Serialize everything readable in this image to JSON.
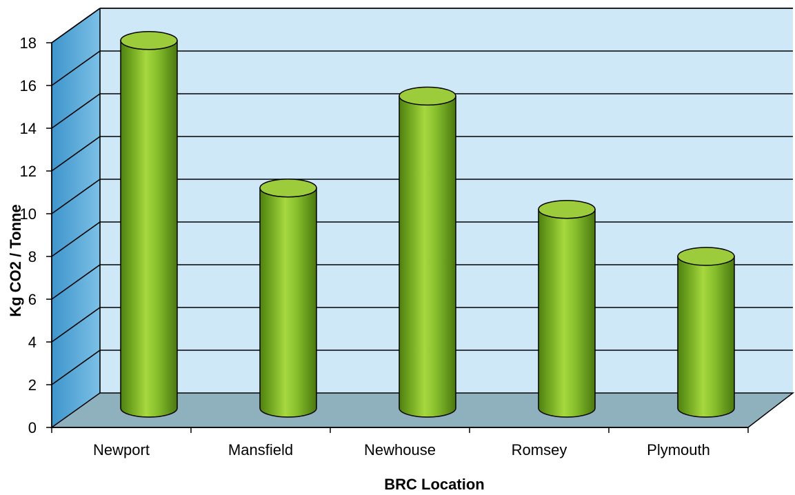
{
  "chart_data": {
    "type": "bar",
    "style": "3d-cylinder",
    "title": "",
    "xlabel": "BRC Location",
    "ylabel": "Kg CO2 / Tonne",
    "categories": [
      "Newport",
      "Mansfield",
      "Newhouse",
      "Romsey",
      "Plymouth"
    ],
    "values": [
      17.2,
      10.3,
      14.6,
      9.3,
      7.1
    ],
    "ylim": [
      0,
      18
    ],
    "yticks": [
      "0",
      "2",
      "4",
      "6",
      "8",
      "10",
      "12",
      "14",
      "16",
      "18"
    ],
    "grid": true,
    "legend": "none",
    "colors": {
      "bar": "#7db82a",
      "bar_top": "#9ccc3c",
      "back_wall": "#cfe8f7",
      "side_wall": "#5aa9d8",
      "floor": "#8fb0bd",
      "grid": "#000000"
    }
  }
}
